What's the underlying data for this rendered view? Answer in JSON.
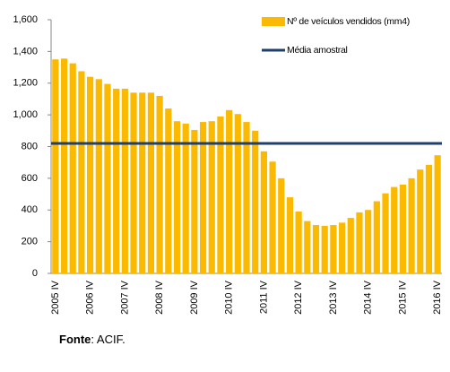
{
  "chart_data": {
    "type": "bar",
    "categories": [
      "2005 IV",
      null,
      null,
      null,
      "2006 IV",
      null,
      null,
      null,
      "2007 IV",
      null,
      null,
      null,
      "2008 IV",
      null,
      null,
      null,
      "2009 IV",
      null,
      null,
      null,
      "2010 IV",
      null,
      null,
      null,
      "2011 IV",
      null,
      null,
      null,
      "2012 IV",
      null,
      null,
      null,
      "2013 IV",
      null,
      null,
      null,
      "2014 IV",
      null,
      null,
      null,
      "2015 IV",
      null,
      null,
      null,
      "2016 IV"
    ],
    "series": [
      {
        "name": "Nº de veículos vendidos (mm4)",
        "color": "#fbb900",
        "type": "bar",
        "values": [
          1350,
          1355,
          1325,
          1275,
          1240,
          1225,
          1195,
          1165,
          1165,
          1140,
          1140,
          1140,
          1120,
          1040,
          960,
          945,
          905,
          955,
          960,
          990,
          1030,
          1005,
          955,
          900,
          770,
          705,
          600,
          480,
          390,
          330,
          305,
          300,
          305,
          320,
          350,
          385,
          400,
          455,
          505,
          545,
          560,
          600,
          655,
          685,
          745
        ]
      },
      {
        "name": "Média amostral",
        "color": "#1f3f6e",
        "type": "line",
        "values": [
          820,
          820,
          820,
          820,
          820,
          820,
          820,
          820,
          820,
          820,
          820,
          820,
          820,
          820,
          820,
          820,
          820,
          820,
          820,
          820,
          820,
          820,
          820,
          820,
          820,
          820,
          820,
          820,
          820,
          820,
          820,
          820,
          820,
          820,
          820,
          820,
          820,
          820,
          820,
          820,
          820,
          820,
          820,
          820,
          820
        ]
      }
    ],
    "ylim": [
      0,
      1600
    ],
    "yticks": [
      0,
      200,
      400,
      600,
      800,
      {
        "value": 1000,
        "label": "1,000"
      },
      {
        "value": 1200,
        "label": "1,200"
      },
      {
        "value": 1400,
        "label": "1,400"
      },
      {
        "value": 1600,
        "label": "1,600"
      }
    ],
    "legend": "top-right"
  },
  "source": {
    "label": "Fonte",
    "text": ": ACIF."
  }
}
